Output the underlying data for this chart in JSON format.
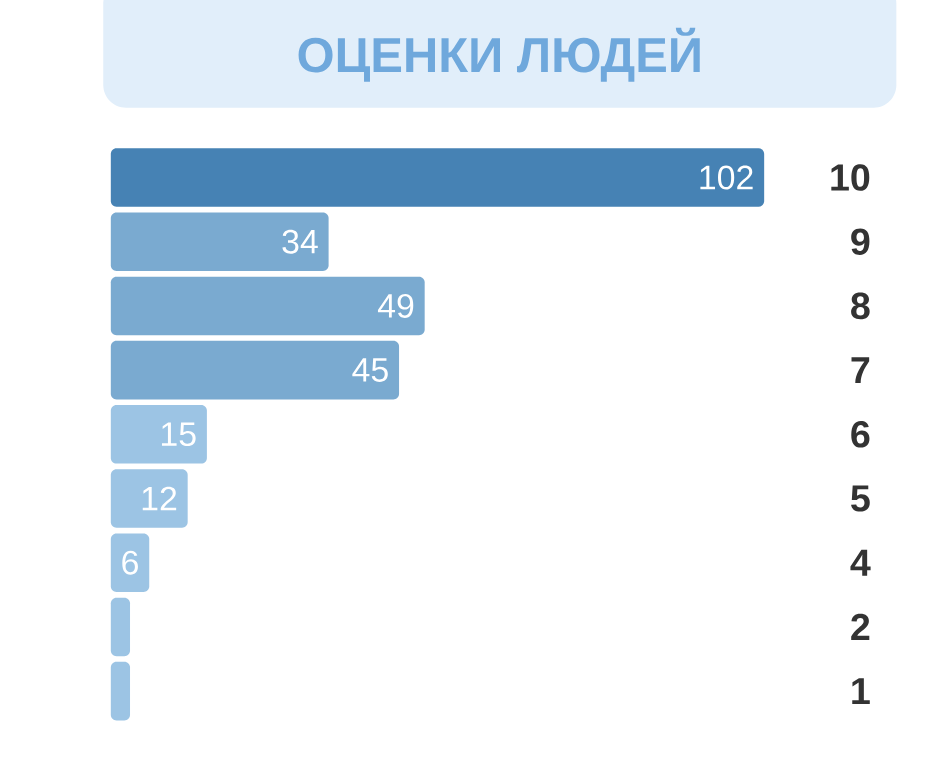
{
  "chart_data": {
    "type": "bar",
    "orientation": "horizontal",
    "title": "ОЦЕНКИ ЛЮДЕЙ",
    "categories": [
      "10",
      "9",
      "8",
      "7",
      "6",
      "5",
      "4",
      "2",
      "1"
    ],
    "values": [
      102,
      34,
      49,
      45,
      15,
      12,
      6,
      3,
      3
    ],
    "value_labels": [
      "102",
      "34",
      "49",
      "45",
      "15",
      "12",
      "6",
      null,
      null
    ],
    "colors": [
      "#4682b4",
      "#7aaad0",
      "#7aaad0",
      "#7aaad0",
      "#9cc4e4",
      "#9cc4e4",
      "#9cc4e4",
      "#9cc4e4",
      "#9cc4e4"
    ]
  }
}
